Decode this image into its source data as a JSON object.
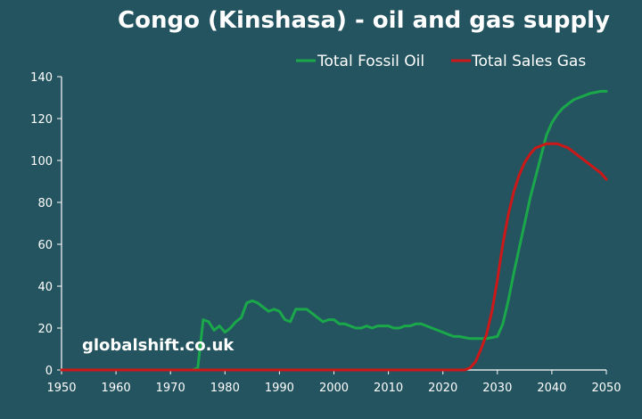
{
  "chart_data": {
    "type": "line",
    "title": "Congo (Kinshasa) - oil and gas supply",
    "watermark": "globalshift.co.uk",
    "xlabel": "",
    "ylabel": "",
    "xlim": [
      1950,
      2050
    ],
    "ylim": [
      0,
      140
    ],
    "xticks": [
      "1950",
      "1960",
      "1970",
      "1980",
      "1990",
      "2000",
      "2010",
      "2020",
      "2030",
      "2040",
      "2050"
    ],
    "yticks": [
      "0",
      "20",
      "40",
      "60",
      "80",
      "100",
      "120",
      "140"
    ],
    "legend_position": "top-right",
    "grid": false,
    "series": [
      {
        "name": "Total Fossil Oil",
        "color": "#1aa84b",
        "x": [
          1950,
          1974,
          1975,
          1976,
          1977,
          1978,
          1979,
          1980,
          1981,
          1982,
          1983,
          1984,
          1985,
          1986,
          1987,
          1988,
          1989,
          1990,
          1991,
          1992,
          1993,
          1994,
          1995,
          1996,
          1997,
          1998,
          1999,
          2000,
          2001,
          2002,
          2003,
          2004,
          2005,
          2006,
          2007,
          2008,
          2009,
          2010,
          2011,
          2012,
          2013,
          2014,
          2015,
          2016,
          2017,
          2018,
          2019,
          2020,
          2021,
          2022,
          2023,
          2024,
          2025,
          2026,
          2027,
          2028,
          2029,
          2030,
          2031,
          2032,
          2033,
          2034,
          2035,
          2036,
          2037,
          2038,
          2039,
          2040,
          2041,
          2042,
          2043,
          2044,
          2045,
          2046,
          2047,
          2048,
          2049,
          2050
        ],
        "values": [
          0,
          0,
          1,
          24,
          23,
          19,
          21,
          18,
          20,
          23,
          25,
          32,
          33,
          32,
          30,
          28,
          29,
          28,
          24,
          23,
          29,
          29,
          29,
          27,
          25,
          23,
          24,
          24,
          22,
          22,
          21,
          20,
          20,
          21,
          20,
          21,
          21,
          21,
          20,
          20,
          21,
          21,
          22,
          22,
          21,
          20,
          19,
          18,
          17,
          16,
          16,
          15.5,
          15,
          15,
          15,
          15,
          15.5,
          16,
          22,
          33,
          46,
          58,
          70,
          82,
          92,
          102,
          112,
          118,
          122,
          125,
          127,
          129,
          130,
          131,
          132,
          132.5,
          133,
          133
        ]
      },
      {
        "name": "Total Sales Gas",
        "color": "#cc1818",
        "x": [
          1950,
          2024,
          2025,
          2026,
          2027,
          2028,
          2029,
          2030,
          2031,
          2032,
          2033,
          2034,
          2035,
          2036,
          2037,
          2038,
          2039,
          2040,
          2041,
          2042,
          2043,
          2044,
          2045,
          2046,
          2047,
          2048,
          2049,
          2050
        ],
        "values": [
          0,
          0,
          1,
          4,
          10,
          17,
          28,
          43,
          60,
          74,
          85,
          93,
          99,
          103,
          106,
          107,
          108,
          108,
          108,
          107,
          106,
          104,
          102,
          100,
          98,
          96,
          94,
          91
        ]
      }
    ]
  }
}
